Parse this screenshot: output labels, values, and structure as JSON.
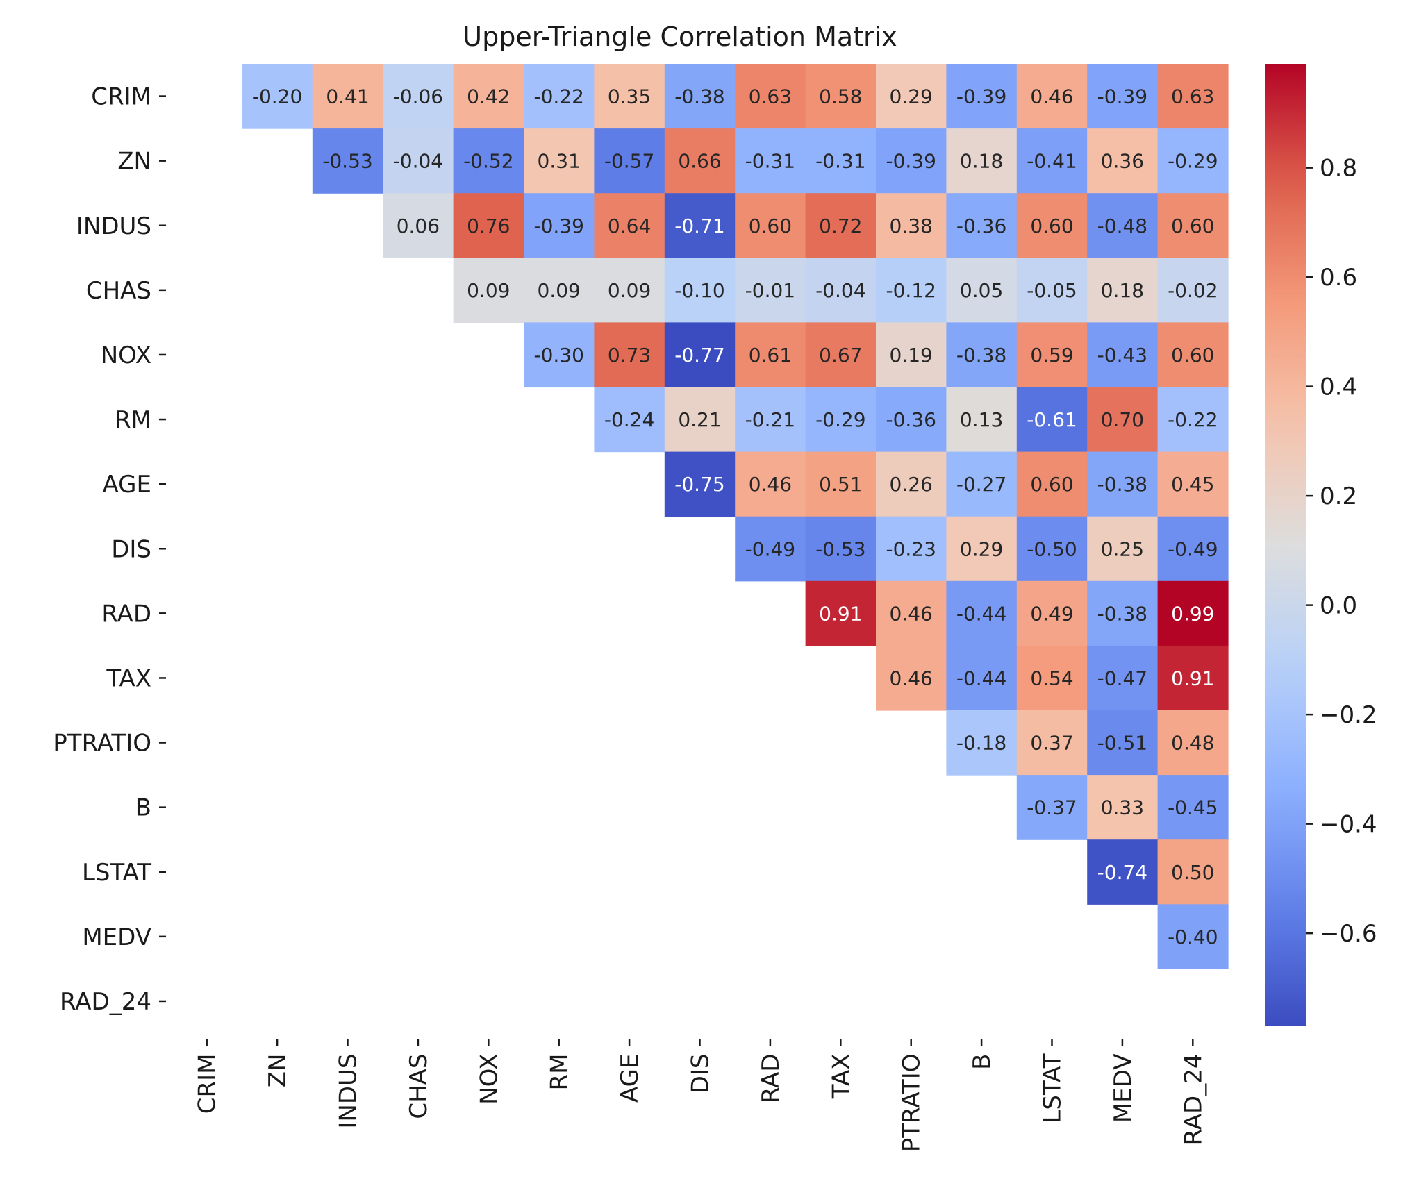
{
  "chart_data": {
    "type": "heatmap",
    "title": "Upper-Triangle Correlation Matrix",
    "variables": [
      "CRIM",
      "ZN",
      "INDUS",
      "CHAS",
      "NOX",
      "RM",
      "AGE",
      "DIS",
      "RAD",
      "TAX",
      "PTRATIO",
      "B",
      "LSTAT",
      "MEDV",
      "RAD_24"
    ],
    "mask": "upper-triangle (diagonal and lower triangle hidden)",
    "colormap": "coolwarm",
    "value_format": "0.00",
    "cells": [
      [
        "",
        "-0.20",
        "0.41",
        "-0.06",
        "0.42",
        "-0.22",
        "0.35",
        "-0.38",
        "0.63",
        "0.58",
        "0.29",
        "-0.39",
        "0.46",
        "-0.39",
        "0.63"
      ],
      [
        "",
        "",
        "-0.53",
        "-0.04",
        "-0.52",
        "0.31",
        "-0.57",
        "0.66",
        "-0.31",
        "-0.31",
        "-0.39",
        "0.18",
        "-0.41",
        "0.36",
        "-0.29"
      ],
      [
        "",
        "",
        "",
        "0.06",
        "0.76",
        "-0.39",
        "0.64",
        "-0.71",
        "0.60",
        "0.72",
        "0.38",
        "-0.36",
        "0.60",
        "-0.48",
        "0.60"
      ],
      [
        "",
        "",
        "",
        "",
        "0.09",
        "0.09",
        "0.09",
        "-0.10",
        "-0.01",
        "-0.04",
        "-0.12",
        "0.05",
        "-0.05",
        "0.18",
        "-0.02"
      ],
      [
        "",
        "",
        "",
        "",
        "",
        "-0.30",
        "0.73",
        "-0.77",
        "0.61",
        "0.67",
        "0.19",
        "-0.38",
        "0.59",
        "-0.43",
        "0.60"
      ],
      [
        "",
        "",
        "",
        "",
        "",
        "",
        "-0.24",
        "0.21",
        "-0.21",
        "-0.29",
        "-0.36",
        "0.13",
        "-0.61",
        "0.70",
        "-0.22"
      ],
      [
        "",
        "",
        "",
        "",
        "",
        "",
        "",
        "-0.75",
        "0.46",
        "0.51",
        "0.26",
        "-0.27",
        "0.60",
        "-0.38",
        "0.45"
      ],
      [
        "",
        "",
        "",
        "",
        "",
        "",
        "",
        "",
        "-0.49",
        "-0.53",
        "-0.23",
        "0.29",
        "-0.50",
        "0.25",
        "-0.49"
      ],
      [
        "",
        "",
        "",
        "",
        "",
        "",
        "",
        "",
        "",
        "0.91",
        "0.46",
        "-0.44",
        "0.49",
        "-0.38",
        "0.99"
      ],
      [
        "",
        "",
        "",
        "",
        "",
        "",
        "",
        "",
        "",
        "",
        "0.46",
        "-0.44",
        "0.54",
        "-0.47",
        "0.91"
      ],
      [
        "",
        "",
        "",
        "",
        "",
        "",
        "",
        "",
        "",
        "",
        "",
        "-0.18",
        "0.37",
        "-0.51",
        "0.48"
      ],
      [
        "",
        "",
        "",
        "",
        "",
        "",
        "",
        "",
        "",
        "",
        "",
        "",
        "-0.37",
        "0.33",
        "-0.45"
      ],
      [
        "",
        "",
        "",
        "",
        "",
        "",
        "",
        "",
        "",
        "",
        "",
        "",
        "",
        "-0.74",
        "0.50"
      ],
      [
        "",
        "",
        "",
        "",
        "",
        "",
        "",
        "",
        "",
        "",
        "",
        "",
        "",
        "",
        "-0.40"
      ],
      [
        "",
        "",
        "",
        "",
        "",
        "",
        "",
        "",
        "",
        "",
        "",
        "",
        "",
        "",
        ""
      ]
    ],
    "colorbar": {
      "range": [
        -0.77,
        0.99
      ],
      "ticks": [
        "−0.6",
        "−0.4",
        "−0.2",
        "0.0",
        "0.2",
        "0.4",
        "0.6",
        "0.8"
      ],
      "tick_values": [
        -0.6,
        -0.4,
        -0.2,
        0.0,
        0.2,
        0.4,
        0.6,
        0.8
      ]
    }
  }
}
